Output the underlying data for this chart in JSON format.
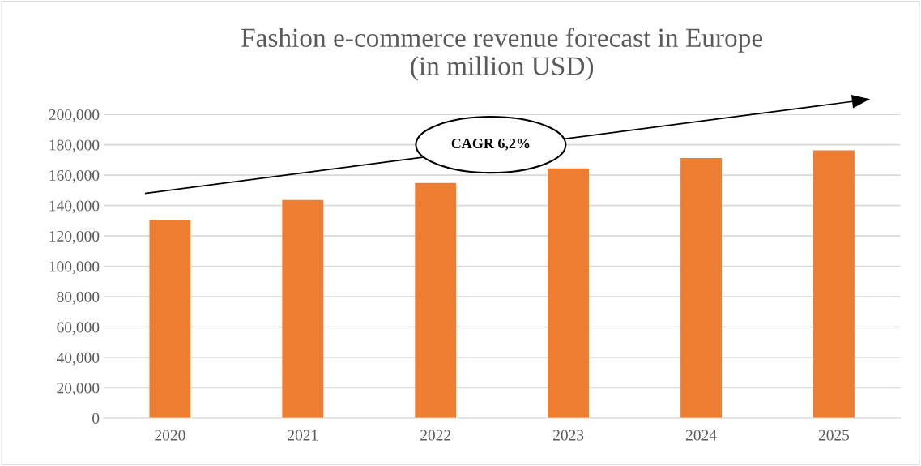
{
  "chart_data": {
    "type": "bar",
    "title": "Fashion e-commerce revenue forecast in Europe\n(in million USD)",
    "categories": [
      "2020",
      "2021",
      "2022",
      "2023",
      "2024",
      "2025"
    ],
    "values": [
      130700,
      143600,
      154800,
      164400,
      171200,
      176300
    ],
    "color": "#ed7d31",
    "ylim": [
      0,
      200000
    ],
    "yticks": [
      {
        "value": 0,
        "label": "0"
      },
      {
        "value": 20000,
        "label": "20,000"
      },
      {
        "value": 40000,
        "label": "40,000"
      },
      {
        "value": 60000,
        "label": "60,000"
      },
      {
        "value": 80000,
        "label": "80,000"
      },
      {
        "value": 100000,
        "label": "100,000"
      },
      {
        "value": 120000,
        "label": "120,000"
      },
      {
        "value": 140000,
        "label": "140,000"
      },
      {
        "value": 160000,
        "label": "160,000"
      },
      {
        "value": 180000,
        "label": "180,000"
      },
      {
        "value": 200000,
        "label": "200,000"
      }
    ],
    "grid": "y",
    "legend": false,
    "annotations": [
      "CAGR 6,2%"
    ]
  }
}
